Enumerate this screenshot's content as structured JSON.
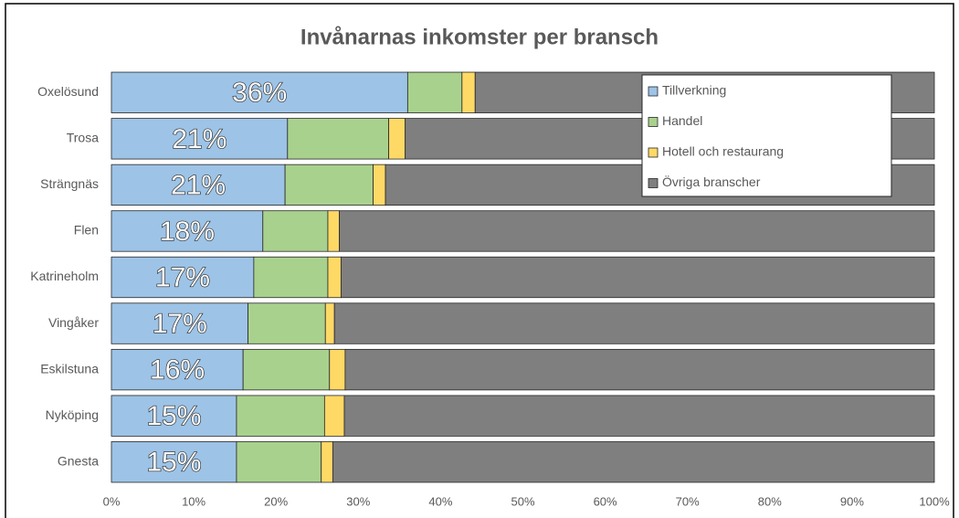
{
  "chart_data": {
    "type": "bar",
    "orientation": "horizontal",
    "stacked": true,
    "title": "Invånarnas inkomster per bransch",
    "categories": [
      "Oxelösund",
      "Trosa",
      "Strängnäs",
      "Flen",
      "Katrineholm",
      "Vingåker",
      "Eskilstuna",
      "Nyköping",
      "Gnesta"
    ],
    "series": [
      {
        "name": "Tillverkning",
        "color": "#9dc3e6",
        "values": [
          36.0,
          21.4,
          21.1,
          18.4,
          17.3,
          16.6,
          16.0,
          15.2,
          15.2
        ],
        "value_labels": [
          "36%",
          "21%",
          "21%",
          "18%",
          "17%",
          "17%",
          "16%",
          "15%",
          "15%"
        ]
      },
      {
        "name": "Handel",
        "color": "#a9d18e",
        "values": [
          6.6,
          12.3,
          10.7,
          7.9,
          9.0,
          9.4,
          10.5,
          10.7,
          10.3
        ]
      },
      {
        "name": "Hotell och restaurang",
        "color": "#ffd966",
        "values": [
          1.6,
          2.0,
          1.5,
          1.4,
          1.6,
          1.1,
          1.9,
          2.4,
          1.4
        ]
      },
      {
        "name": "Övriga branscher",
        "color": "#7f7f7f",
        "values": [
          55.8,
          64.3,
          66.7,
          72.3,
          72.1,
          72.9,
          71.6,
          71.7,
          73.1
        ]
      }
    ],
    "xlim": [
      0,
      100
    ],
    "xticks": [
      {
        "value": 0,
        "label": "0%"
      },
      {
        "value": 10,
        "label": "10%"
      },
      {
        "value": 20,
        "label": "20%"
      },
      {
        "value": 30,
        "label": "30%"
      },
      {
        "value": 40,
        "label": "40%"
      },
      {
        "value": 50,
        "label": "50%"
      },
      {
        "value": 60,
        "label": "60%"
      },
      {
        "value": 70,
        "label": "70%"
      },
      {
        "value": 80,
        "label": "80%"
      },
      {
        "value": 90,
        "label": "90%"
      },
      {
        "value": 100,
        "label": "100%"
      }
    ],
    "grid": false,
    "legend": "upper right"
  }
}
